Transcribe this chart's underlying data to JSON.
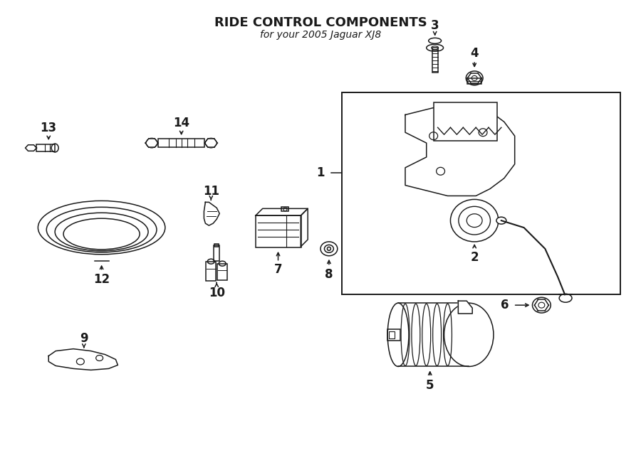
{
  "title": "RIDE CONTROL COMPONENTS",
  "subtitle": "for your 2005 Jaguar XJ8",
  "bg_color": "#ffffff",
  "line_color": "#1a1a1a",
  "fig_width": 9.0,
  "fig_height": 6.61,
  "dpi": 100
}
